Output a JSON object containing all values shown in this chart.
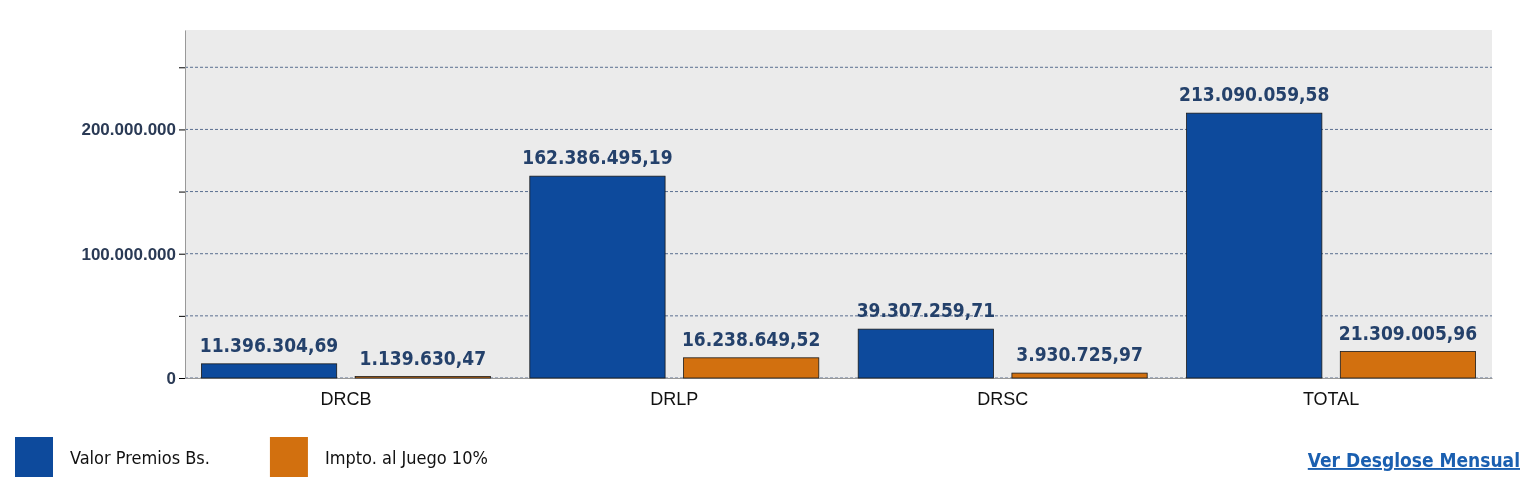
{
  "chart_data": {
    "type": "bar",
    "categories": [
      "DRCB",
      "DRLP",
      "DRSC",
      "TOTAL"
    ],
    "series": [
      {
        "name": "Valor Premios Bs.",
        "color": "#0d4a9c",
        "values": [
          11396304.69,
          162386495.19,
          39307259.71,
          213090059.58
        ],
        "value_labels": [
          "11.396.304,69",
          "162.386.495,19",
          "39.307.259,71",
          "213.090.059,58"
        ]
      },
      {
        "name": "Impto. al Juego 10%",
        "color": "#d2700f",
        "values": [
          1139630.47,
          16238649.52,
          3930725.97,
          21309005.96
        ],
        "value_labels": [
          "1.139.630,47",
          "16.238.649,52",
          "3.930.725,97",
          "21.309.005,96"
        ]
      }
    ],
    "ylim": [
      0,
      280000000
    ],
    "yticks": [
      {
        "value": 0,
        "label": "0"
      },
      {
        "value": 50000000,
        "label": null
      },
      {
        "value": 100000000,
        "label": "100.000.000"
      },
      {
        "value": 150000000,
        "label": null
      },
      {
        "value": 200000000,
        "label": "200.000.000"
      },
      {
        "value": 250000000,
        "label": null
      }
    ],
    "grid": "y",
    "legend": "bottom left",
    "annotations": [
      "Ver Desglose Mensual"
    ]
  }
}
